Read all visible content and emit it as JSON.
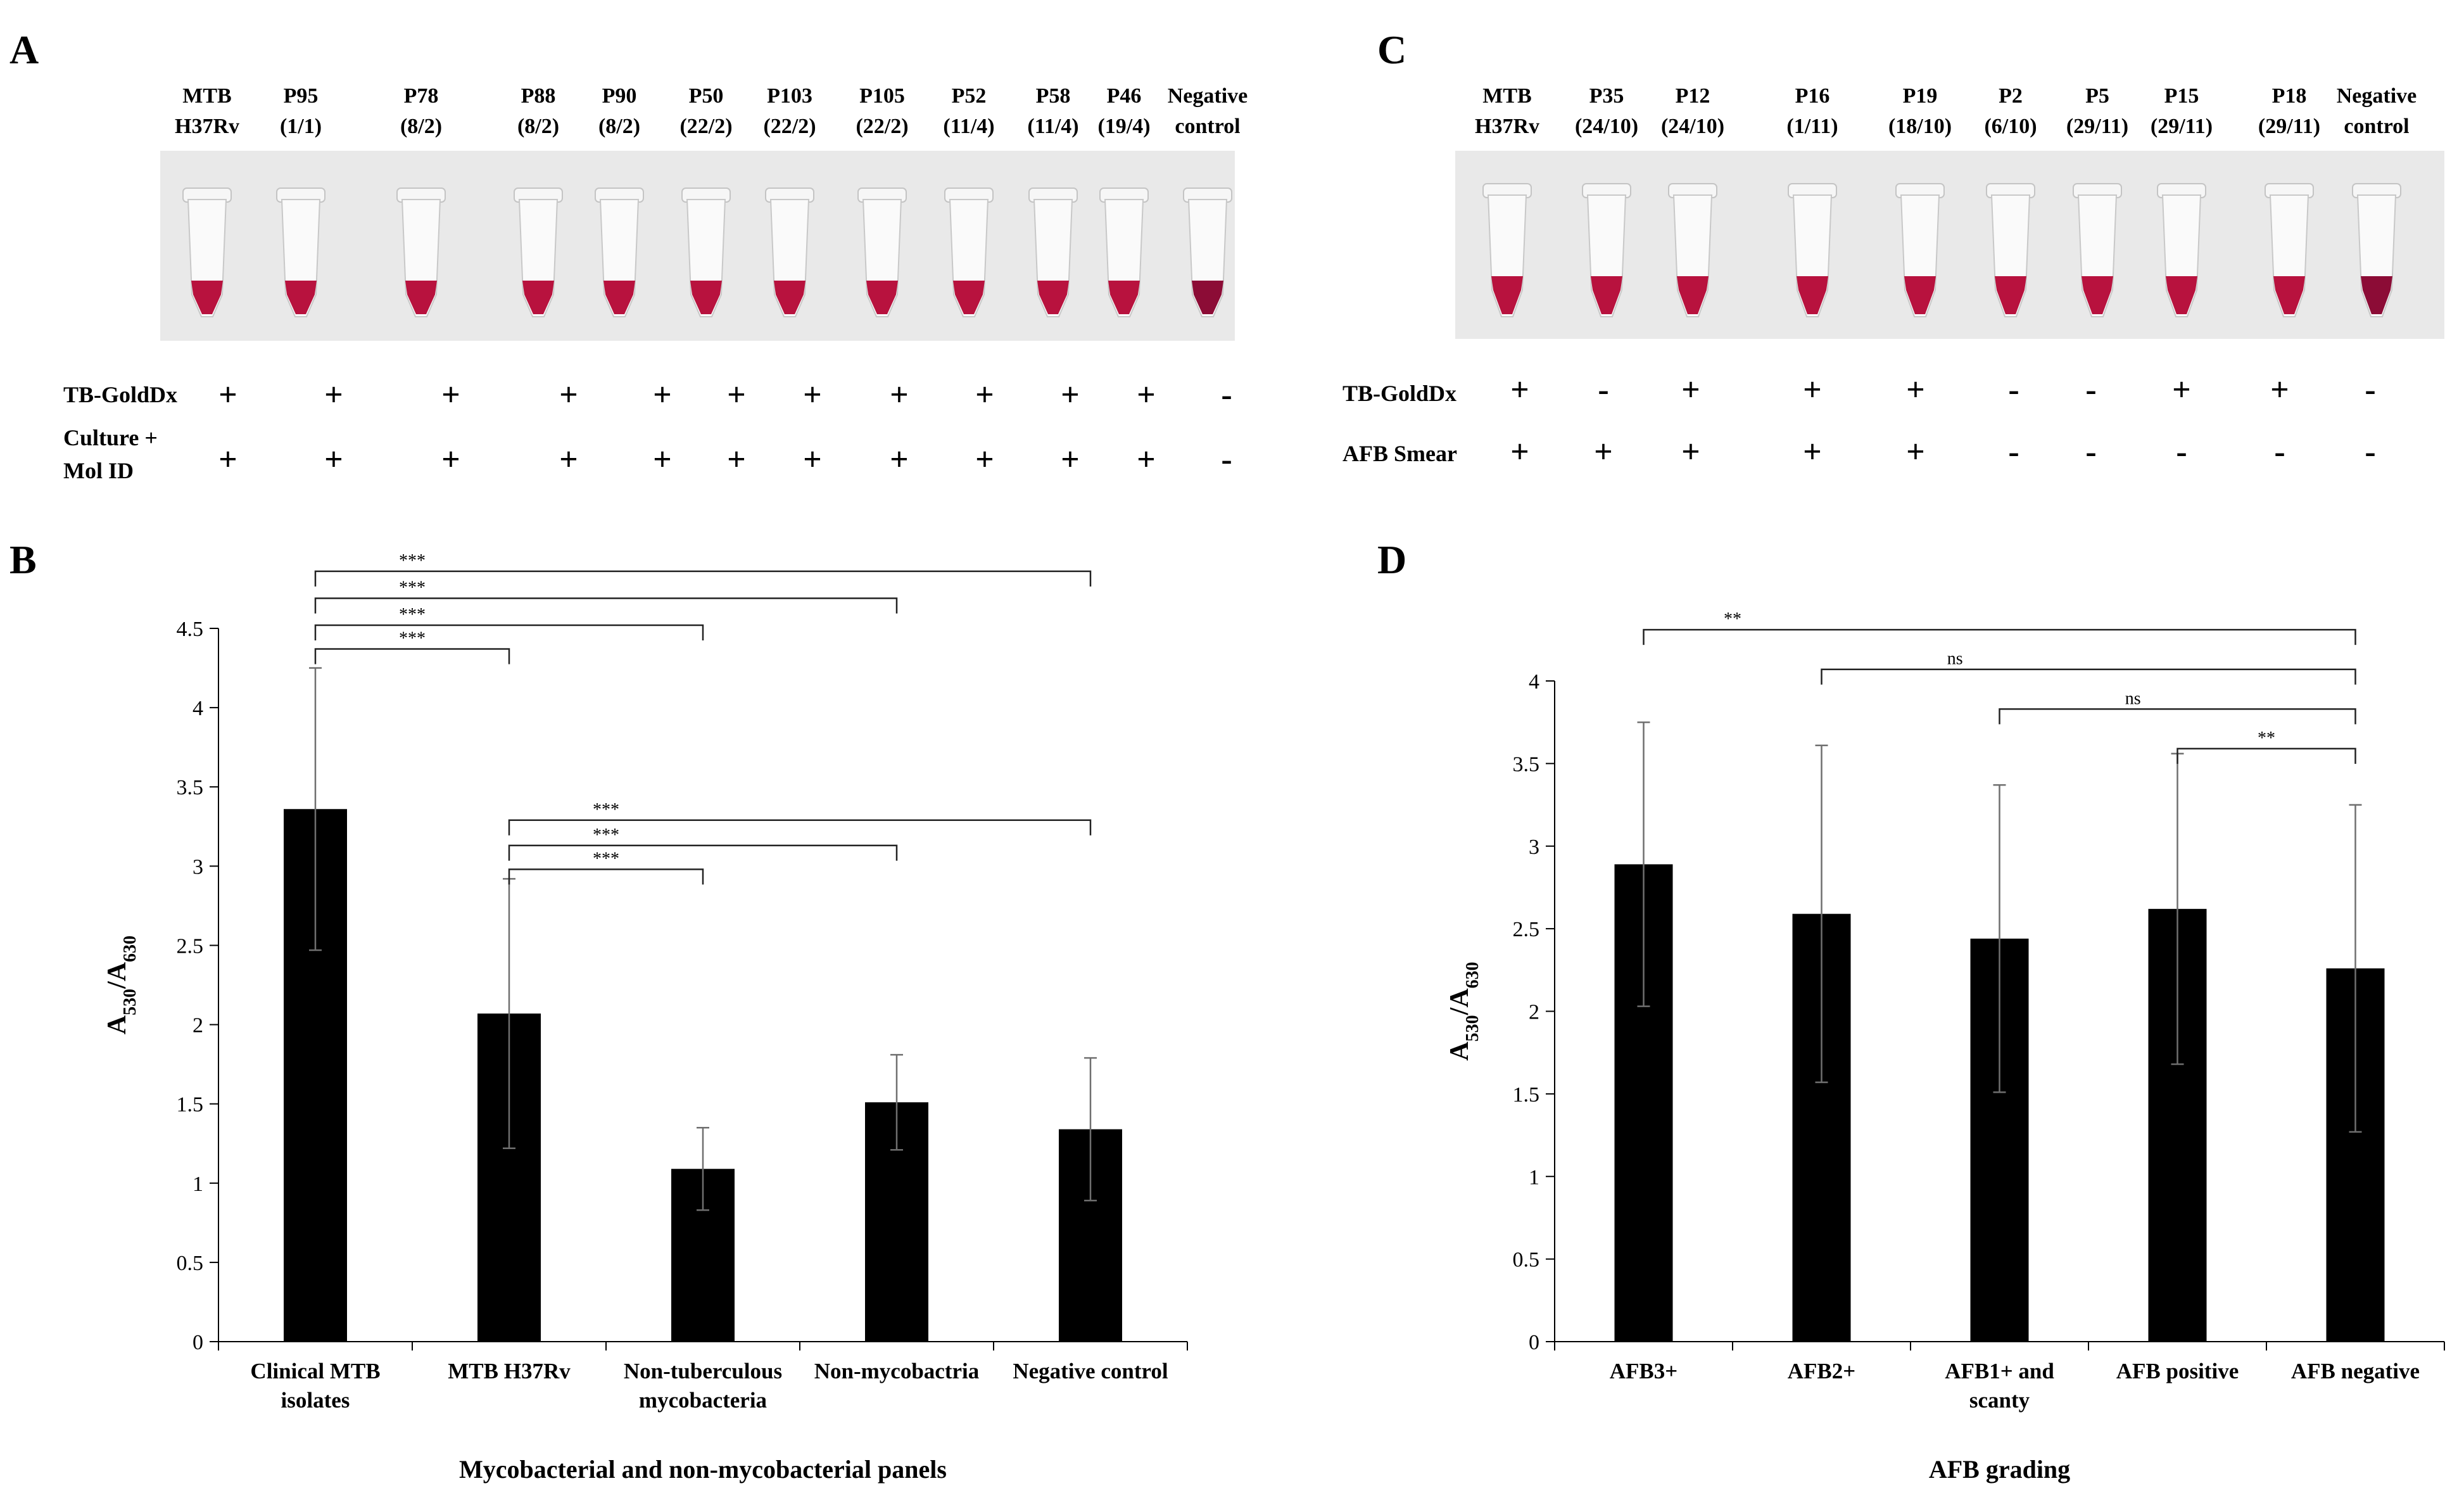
{
  "colors": {
    "bar": "#000000",
    "tube_liquid": "#b8123e",
    "tube_liquid_dark": "#8c0c36",
    "photo_bg": "#e9e9e9",
    "error_bar": "#6f6f6f"
  },
  "panels": {
    "A": {
      "letter": "A",
      "tubes": [
        {
          "line1": "MTB",
          "line2": "H37Rv",
          "row1": "+",
          "row2": "+"
        },
        {
          "line1": "P95",
          "line2": "(1/1)",
          "row1": "+",
          "row2": "+"
        },
        {
          "line1": "P78",
          "line2": "(8/2)",
          "row1": "+",
          "row2": "+"
        },
        {
          "line1": "P88",
          "line2": "(8/2)",
          "row1": "+",
          "row2": "+"
        },
        {
          "line1": "P90",
          "line2": "(8/2)",
          "row1": "+",
          "row2": "+"
        },
        {
          "line1": "P50",
          "line2": "(22/2)",
          "row1": "+",
          "row2": "+"
        },
        {
          "line1": "P103",
          "line2": "(22/2)",
          "row1": "+",
          "row2": "+"
        },
        {
          "line1": "P105",
          "line2": "(22/2)",
          "row1": "+",
          "row2": "+"
        },
        {
          "line1": "P52",
          "line2": "(11/4)",
          "row1": "+",
          "row2": "+"
        },
        {
          "line1": "P58",
          "line2": "(11/4)",
          "row1": "+",
          "row2": "+"
        },
        {
          "line1": "P46",
          "line2": "(19/4)",
          "row1": "+",
          "row2": "+"
        },
        {
          "line1": "Negative",
          "line2": "control",
          "row1": "-",
          "row2": "-"
        }
      ],
      "row1_label": "TB-GoldDx",
      "row2_label_line1": "Culture +",
      "row2_label_line2": "Mol ID"
    },
    "C": {
      "letter": "C",
      "tubes": [
        {
          "line1": "MTB",
          "line2": "H37Rv",
          "row1": "+",
          "row2": "+"
        },
        {
          "line1": "P35",
          "line2": "(24/10)",
          "row1": "-",
          "row2": "+"
        },
        {
          "line1": "P12",
          "line2": "(24/10)",
          "row1": "+",
          "row2": "+"
        },
        {
          "line1": "P16",
          "line2": "(1/11)",
          "row1": "+",
          "row2": "+"
        },
        {
          "line1": "P19",
          "line2": "(18/10)",
          "row1": "+",
          "row2": "+"
        },
        {
          "line1": "P2",
          "line2": "(6/10)",
          "row1": "-",
          "row2": "-"
        },
        {
          "line1": "P5",
          "line2": "(29/11)",
          "row1": "-",
          "row2": "-"
        },
        {
          "line1": "P15",
          "line2": "(29/11)",
          "row1": "+",
          "row2": "-"
        },
        {
          "line1": "P18",
          "line2": "(29/11)",
          "row1": "+",
          "row2": "-"
        },
        {
          "line1": "Negative",
          "line2": "control",
          "row1": "-",
          "row2": "-"
        }
      ],
      "row1_label": "TB-GoldDx",
      "row2_label": "AFB Smear"
    }
  },
  "chart_data": [
    {
      "panel": "B",
      "type": "bar",
      "categories": [
        [
          "Clinical MTB",
          "isolates"
        ],
        [
          "MTB H37Rv"
        ],
        [
          "Non-tuberculous",
          "mycobacteria"
        ],
        [
          "Non-mycobactria"
        ],
        [
          "Negative control"
        ]
      ],
      "values": [
        3.36,
        2.07,
        1.09,
        1.51,
        1.34
      ],
      "errors": [
        0.89,
        0.85,
        0.26,
        0.3,
        0.45
      ],
      "ylim": [
        0,
        4.5
      ],
      "yticks": [
        "0",
        "0.5",
        "1",
        "1.5",
        "2",
        "2.5",
        "3",
        "3.5",
        "4",
        "4.5"
      ],
      "ylabel": {
        "main": "A",
        "sub1": "530",
        "mid": "/A",
        "sub2": "630"
      },
      "xlabel": "Mycobacterial and non-mycobacterial panels",
      "significance": [
        {
          "from": 0,
          "to": 4,
          "level": 4.86,
          "label": "***"
        },
        {
          "from": 0,
          "to": 3,
          "level": 4.69,
          "label": "***"
        },
        {
          "from": 0,
          "to": 2,
          "level": 4.52,
          "label": "***"
        },
        {
          "from": 0,
          "to": 1,
          "level": 4.37,
          "label": "***"
        },
        {
          "from": 1,
          "to": 4,
          "level": 3.29,
          "label": "***"
        },
        {
          "from": 1,
          "to": 3,
          "level": 3.13,
          "label": "***"
        },
        {
          "from": 1,
          "to": 2,
          "level": 2.98,
          "label": "***"
        }
      ]
    },
    {
      "panel": "D",
      "type": "bar",
      "categories": [
        [
          "AFB3+"
        ],
        [
          "AFB2+"
        ],
        [
          "AFB1+ and",
          "scanty"
        ],
        [
          "AFB positive"
        ],
        [
          "AFB negative"
        ]
      ],
      "values": [
        2.89,
        2.59,
        2.44,
        2.62,
        2.26
      ],
      "errors": [
        0.86,
        1.02,
        0.93,
        0.94,
        0.99
      ],
      "ylim": [
        0,
        4
      ],
      "yticks": [
        "0",
        "0.5",
        "1",
        "1.5",
        "2",
        "2.5",
        "3",
        "3.5",
        "4"
      ],
      "ylabel": {
        "main": "A",
        "sub1": "530",
        "mid": "/A",
        "sub2": "630"
      },
      "xlabel": "AFB grading",
      "significance": [
        {
          "from": 0,
          "to": 4,
          "level": 4.31,
          "label": "**"
        },
        {
          "from": 1,
          "to": 4,
          "level": 4.07,
          "label": "ns"
        },
        {
          "from": 2,
          "to": 4,
          "level": 3.83,
          "label": "ns"
        },
        {
          "from": 3,
          "to": 4,
          "level": 3.59,
          "label": "**"
        }
      ]
    }
  ]
}
